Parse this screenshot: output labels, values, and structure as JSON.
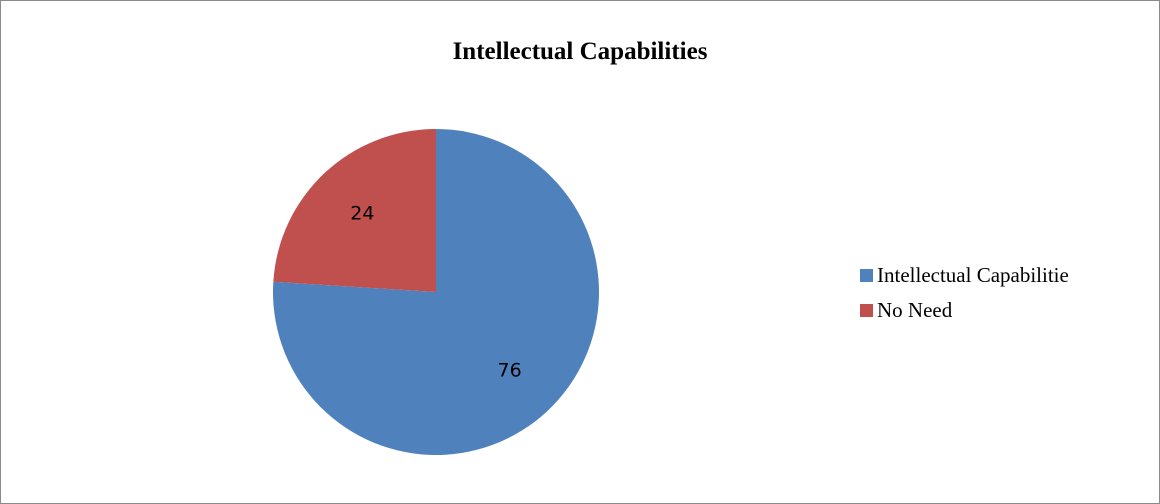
{
  "chart_data": {
    "type": "pie",
    "title": "Intellectual Capabilities",
    "categories": [
      "Intellectual Capabilitie",
      "No Need"
    ],
    "values": [
      76,
      24
    ],
    "data_labels": [
      "76",
      "24"
    ],
    "colors": [
      "#4f81bd",
      "#c0504d"
    ],
    "legend_position": "right",
    "start_angle": "12 o'clock",
    "direction": "clockwise"
  }
}
